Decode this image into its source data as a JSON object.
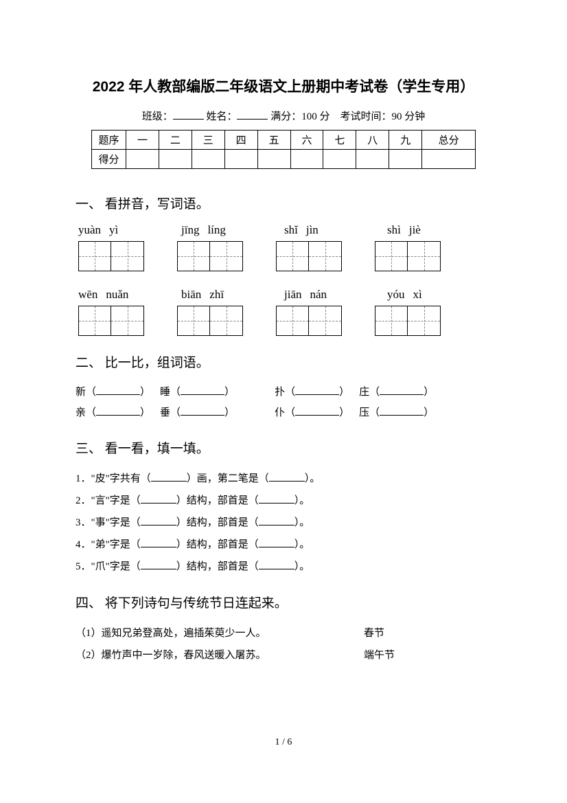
{
  "title": "2022 年人教部编版二年级语文上册期中考试卷（学生专用）",
  "meta": {
    "class_label": "班级：",
    "name_label": "姓名：",
    "full_label": "满分：",
    "full_value": "100 分",
    "time_label": "考试时间：",
    "time_value": "90 分钟"
  },
  "score_table": {
    "row1": [
      "题序",
      "一",
      "二",
      "三",
      "四",
      "五",
      "六",
      "七",
      "八",
      "九",
      "总分"
    ],
    "row2_label": "得分"
  },
  "q1": {
    "heading": "一、 看拼音，写词语。",
    "row1": [
      {
        "a": "yuàn",
        "b": "yì"
      },
      {
        "a": "jīng",
        "b": "líng"
      },
      {
        "a": "shǐ",
        "b": "jìn"
      },
      {
        "a": "shì",
        "b": "jiè"
      }
    ],
    "row2": [
      {
        "a": "wēn",
        "b": "nuǎn"
      },
      {
        "a": "biān",
        "b": "zhī"
      },
      {
        "a": "jiān",
        "b": "nán"
      },
      {
        "a": "yóu",
        "b": "xì"
      }
    ]
  },
  "q2": {
    "heading": "二、 比一比，组词语。",
    "lines": [
      [
        {
          "ch": "新"
        },
        {
          "ch": "睡"
        },
        {
          "ch": "扑"
        },
        {
          "ch": "庄"
        }
      ],
      [
        {
          "ch": "亲"
        },
        {
          "ch": "垂"
        },
        {
          "ch": "仆"
        },
        {
          "ch": "压"
        }
      ]
    ]
  },
  "q3": {
    "heading": "三、 看一看，填一填。",
    "items": [
      {
        "n": "1．",
        "pre": "\"皮\"字共有（",
        "mid": "）画，第二笔是（",
        "post": "）。"
      },
      {
        "n": "2．",
        "pre": "\"言\"字是（",
        "mid": "）结构，部首是（",
        "post": "）。"
      },
      {
        "n": "3．",
        "pre": "\"事\"字是（",
        "mid": "）结构，部首是（",
        "post": "）。"
      },
      {
        "n": "4．",
        "pre": "\"弟\"字是（",
        "mid": "）结构，部首是（",
        "post": "）。"
      },
      {
        "n": "5．",
        "pre": "\"爪\"字是（",
        "mid": "）结构，部首是（",
        "post": "）。"
      }
    ]
  },
  "q4": {
    "heading": "四、 将下列诗句与传统节日连起来。",
    "items": [
      {
        "n": "（1）",
        "left": "遥知兄弟登高处，遍插茱萸少一人。",
        "right": "春节"
      },
      {
        "n": "（2）",
        "left": "爆竹声中一岁除，春风送暖入屠苏。",
        "right": "端午节"
      }
    ]
  },
  "pagenum": "1 / 6"
}
